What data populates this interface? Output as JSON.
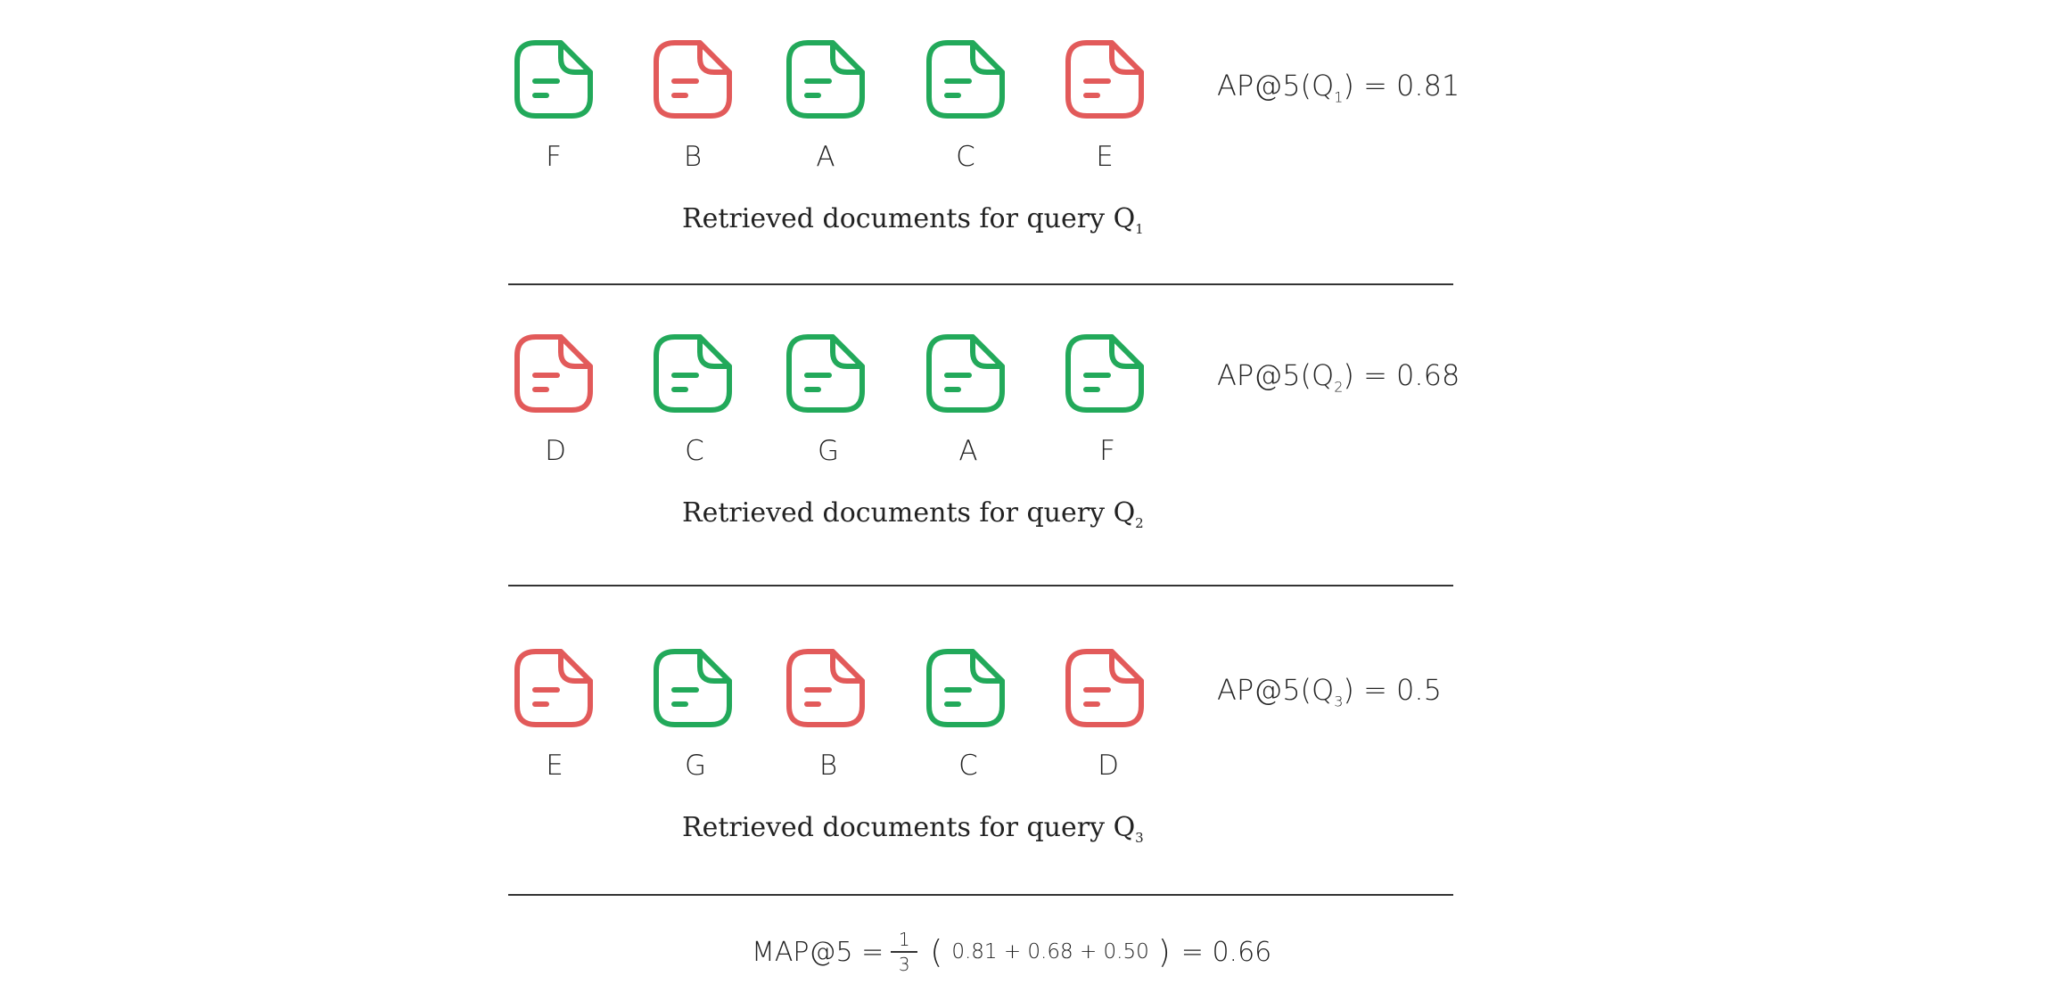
{
  "colors": {
    "relevant": "#22A95A",
    "irrelevant": "#E25A5A"
  },
  "queries": [
    {
      "docs": [
        {
          "letter": "F",
          "relevant": true
        },
        {
          "letter": "B",
          "relevant": false
        },
        {
          "letter": "A",
          "relevant": true
        },
        {
          "letter": "C",
          "relevant": true
        },
        {
          "letter": "E",
          "relevant": false
        }
      ],
      "caption": "Retrieved documents for query Q",
      "caption_sub": "1",
      "ap_prefix": "AP@5(Q",
      "ap_sub": "1",
      "ap_suffix": ") = 0.81"
    },
    {
      "docs": [
        {
          "letter": "D",
          "relevant": false
        },
        {
          "letter": "C",
          "relevant": true
        },
        {
          "letter": "G",
          "relevant": true
        },
        {
          "letter": "A",
          "relevant": true
        },
        {
          "letter": "F",
          "relevant": true
        }
      ],
      "caption": "Retrieved documents for query Q",
      "caption_sub": "2",
      "ap_prefix": "AP@5(Q",
      "ap_sub": "2",
      "ap_suffix": ") = 0.68"
    },
    {
      "docs": [
        {
          "letter": "E",
          "relevant": false
        },
        {
          "letter": "G",
          "relevant": true
        },
        {
          "letter": "B",
          "relevant": false
        },
        {
          "letter": "C",
          "relevant": true
        },
        {
          "letter": "D",
          "relevant": false
        }
      ],
      "caption": "Retrieved documents for query Q",
      "caption_sub": "3",
      "ap_prefix": "AP@5(Q",
      "ap_sub": "3",
      "ap_suffix": ") = 0.5"
    }
  ],
  "map": {
    "label": "MAP@5 =",
    "frac_num": "1",
    "frac_den": "3",
    "open_paren": "(",
    "values": "0.81 + 0.68 + 0.50",
    "close_paren": ")",
    "result": "= 0.66"
  }
}
